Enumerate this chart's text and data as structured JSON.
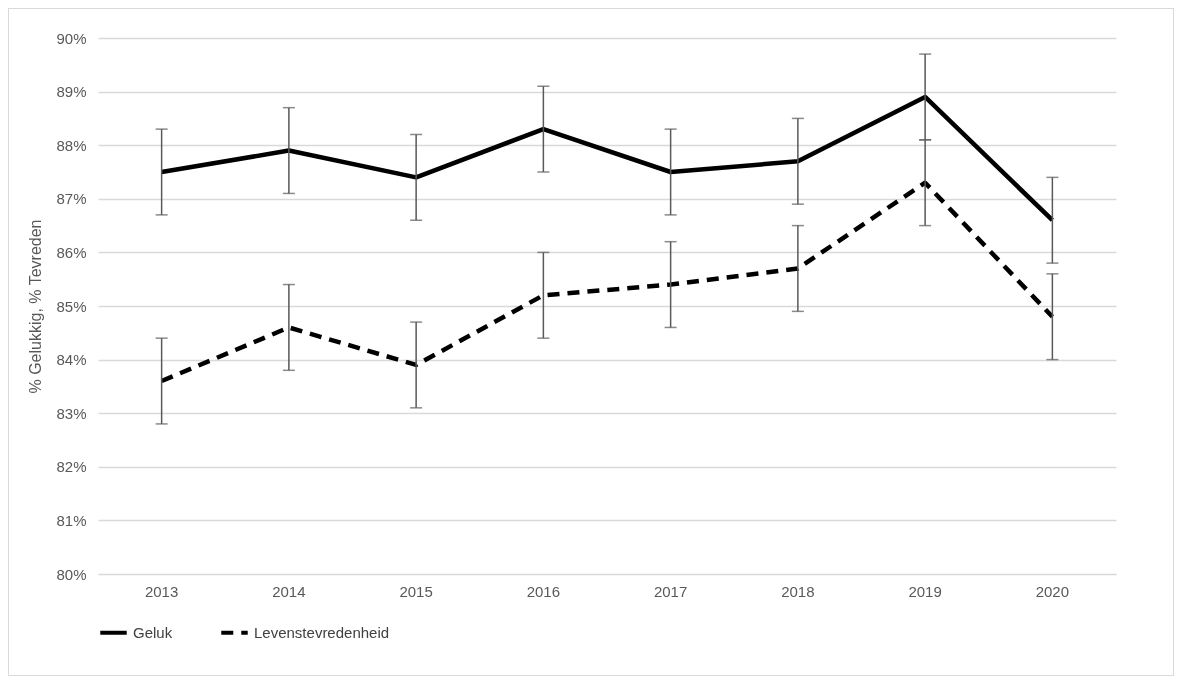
{
  "chart_data": {
    "type": "line",
    "ylabel": "% Gelukkig, % Tevreden",
    "categories": [
      "2013",
      "2014",
      "2015",
      "2016",
      "2017",
      "2018",
      "2019",
      "2020"
    ],
    "series": [
      {
        "name": "Geluk",
        "color": "#000000",
        "line_style": "solid",
        "values": [
          87.5,
          87.9,
          87.4,
          88.3,
          87.5,
          87.7,
          88.9,
          86.6
        ],
        "errors": [
          0.8,
          0.8,
          0.8,
          0.8,
          0.8,
          0.8,
          0.8,
          0.8
        ]
      },
      {
        "name": "Levenstevredenheid",
        "color": "#000000",
        "line_style": "dashed",
        "values": [
          83.6,
          84.6,
          83.9,
          85.2,
          85.4,
          85.7,
          87.3,
          84.8
        ],
        "errors": [
          0.8,
          0.8,
          0.8,
          0.8,
          0.8,
          0.8,
          0.8,
          0.8
        ]
      }
    ],
    "ylim": [
      80,
      90
    ],
    "yticks": [
      {
        "value": 80,
        "label": "80%"
      },
      {
        "value": 81,
        "label": "81%"
      },
      {
        "value": 82,
        "label": "82%"
      },
      {
        "value": 83,
        "label": "83%"
      },
      {
        "value": 84,
        "label": "84%"
      },
      {
        "value": 85,
        "label": "85%"
      },
      {
        "value": 86,
        "label": "86%"
      },
      {
        "value": 87,
        "label": "87%"
      },
      {
        "value": 88,
        "label": "88%"
      },
      {
        "value": 89,
        "label": "89%"
      },
      {
        "value": 90,
        "label": "90%"
      }
    ],
    "grid": "y",
    "legend": "bottom",
    "marker": "none"
  }
}
